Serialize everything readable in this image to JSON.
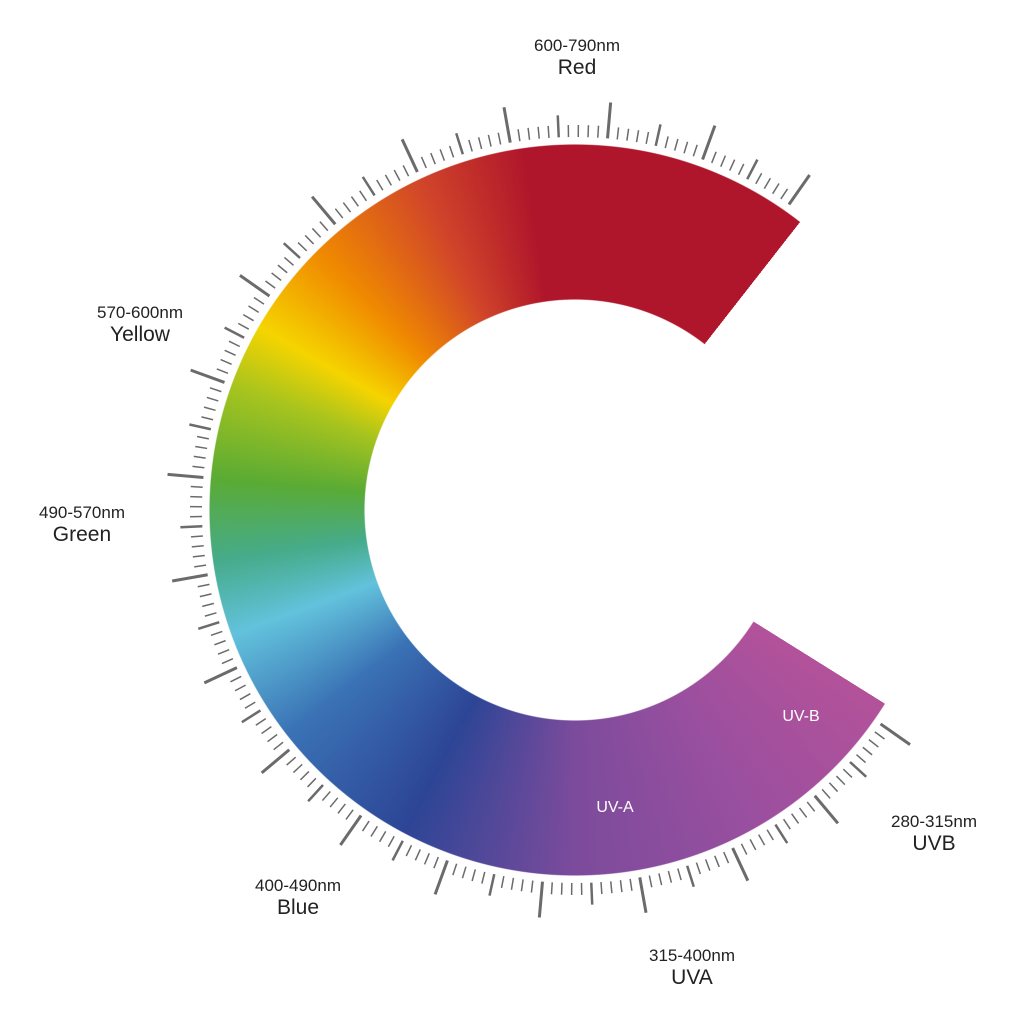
{
  "bands": [
    {
      "range": "600-790nm",
      "name": "Red"
    },
    {
      "range": "570-600nm",
      "name": "Yellow"
    },
    {
      "range": "490-570nm",
      "name": "Green"
    },
    {
      "range": "400-490nm",
      "name": "Blue"
    },
    {
      "range": "315-400nm",
      "name": "UVA"
    },
    {
      "range": "280-315nm",
      "name": "UVB"
    }
  ],
  "ring_labels": [
    "UV-A",
    "UV-B"
  ]
}
